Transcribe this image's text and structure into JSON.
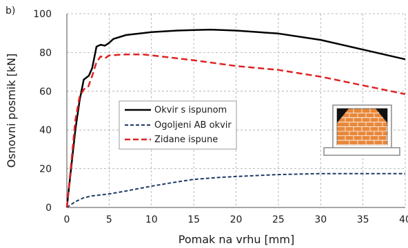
{
  "panel_label": "b)",
  "chart_data": {
    "type": "line",
    "xlabel": "Pomak na vrhu [mm]",
    "ylabel": "Osnovni posmik [kN]",
    "xlim": [
      0,
      40
    ],
    "ylim": [
      0,
      100
    ],
    "x_ticks": [
      0,
      5,
      10,
      15,
      20,
      25,
      30,
      35,
      40
    ],
    "y_ticks": [
      0,
      20,
      40,
      60,
      80,
      100
    ],
    "grid": true,
    "legend_position": "center-left",
    "series": [
      {
        "name": "Okvir s ispunom",
        "color": "#000000",
        "dash": "solid",
        "points": [
          [
            0,
            0
          ],
          [
            0.5,
            20
          ],
          [
            1,
            40
          ],
          [
            1.5,
            55
          ],
          [
            2,
            66
          ],
          [
            2.6,
            68
          ],
          [
            3,
            72
          ],
          [
            3.5,
            83
          ],
          [
            4,
            84
          ],
          [
            4.5,
            83.5
          ],
          [
            5,
            85
          ],
          [
            5.5,
            87
          ],
          [
            7,
            89
          ],
          [
            10,
            90.5
          ],
          [
            13,
            91.3
          ],
          [
            15,
            91.6
          ],
          [
            17,
            91.8
          ],
          [
            20,
            91.3
          ],
          [
            25,
            89.8
          ],
          [
            30,
            86.5
          ],
          [
            35,
            81.5
          ],
          [
            40,
            76.5
          ]
        ]
      },
      {
        "name": "Ogoljeni AB okvir",
        "color": "#1f3864",
        "dash": "dashed",
        "points": [
          [
            0,
            0
          ],
          [
            1,
            3
          ],
          [
            2,
            5
          ],
          [
            3,
            6
          ],
          [
            5,
            7
          ],
          [
            7,
            8.5
          ],
          [
            10,
            11
          ],
          [
            12,
            12.5
          ],
          [
            15,
            14.5
          ],
          [
            18,
            15.5
          ],
          [
            20,
            16
          ],
          [
            25,
            17
          ],
          [
            30,
            17.5
          ],
          [
            35,
            17.5
          ],
          [
            40,
            17.5
          ]
        ]
      },
      {
        "name": "Zidane ispune",
        "color": "#e02020",
        "dash": "dashed",
        "points": [
          [
            0,
            0
          ],
          [
            0.5,
            22
          ],
          [
            1,
            45
          ],
          [
            1.5,
            57
          ],
          [
            2,
            61
          ],
          [
            2.5,
            62
          ],
          [
            3,
            68
          ],
          [
            3.5,
            75
          ],
          [
            4,
            78
          ],
          [
            4.5,
            77
          ],
          [
            5,
            78.5
          ],
          [
            7,
            79
          ],
          [
            9,
            79
          ],
          [
            11,
            78
          ],
          [
            15,
            76
          ],
          [
            20,
            73
          ],
          [
            25,
            71
          ],
          [
            30,
            67.5
          ],
          [
            35,
            63
          ],
          [
            40,
            58.5
          ]
        ]
      }
    ]
  }
}
